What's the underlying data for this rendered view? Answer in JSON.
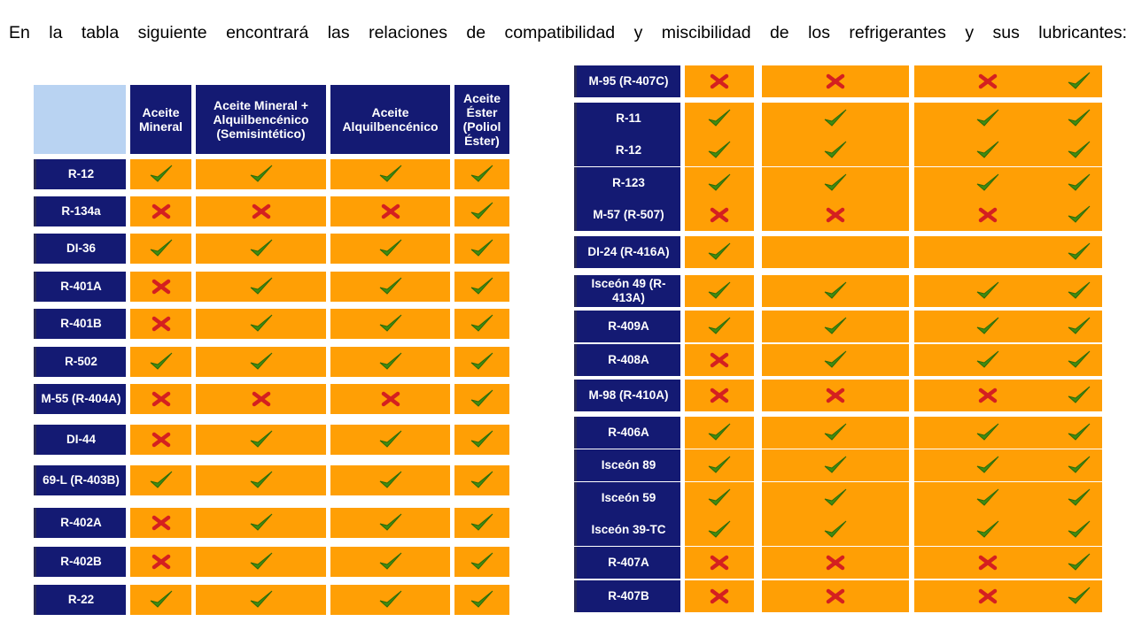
{
  "intro_text": "En la tabla siguiente encontrará las relaciones de compatibilidad y miscibilidad de los refrigerantes y sus lubricantes:",
  "columns": [
    "Aceite Mineral",
    "Aceite Mineral + Alquilbencénico (Semisintético)",
    "Aceite Alquilbencénico",
    "Aceite Éster (Poliol Éster)"
  ],
  "left_table": {
    "rows": [
      {
        "refrigerant": "R-12",
        "values": [
          "yes",
          "yes",
          "yes",
          "yes"
        ]
      },
      {
        "refrigerant": "R-134a",
        "values": [
          "no",
          "no",
          "no",
          "yes"
        ]
      },
      {
        "refrigerant": "DI-36",
        "values": [
          "yes",
          "yes",
          "yes",
          "yes"
        ]
      },
      {
        "refrigerant": "R-401A",
        "values": [
          "no",
          "yes",
          "yes",
          "yes"
        ]
      },
      {
        "refrigerant": "R-401B",
        "values": [
          "no",
          "yes",
          "yes",
          "yes"
        ]
      },
      {
        "refrigerant": "R-502",
        "values": [
          "yes",
          "yes",
          "yes",
          "yes"
        ]
      },
      {
        "refrigerant": "M-55 (R-404A)",
        "values": [
          "no",
          "no",
          "no",
          "yes"
        ]
      },
      {
        "refrigerant": "DI-44",
        "values": [
          "no",
          "yes",
          "yes",
          "yes"
        ]
      },
      {
        "refrigerant": "69-L (R-403B)",
        "values": [
          "yes",
          "yes",
          "yes",
          "yes"
        ]
      },
      {
        "refrigerant": "R-402A",
        "values": [
          "no",
          "yes",
          "yes",
          "yes"
        ]
      },
      {
        "refrigerant": "R-402B",
        "values": [
          "no",
          "yes",
          "yes",
          "yes"
        ]
      },
      {
        "refrigerant": "R-22",
        "values": [
          "yes",
          "yes",
          "yes",
          "yes"
        ]
      }
    ]
  },
  "right_table": {
    "rows": [
      {
        "refrigerant": "M-95 (R-407C)",
        "values": [
          "no",
          "no",
          "no",
          "yes"
        ]
      },
      {
        "refrigerant": "R-11",
        "values": [
          "yes",
          "yes",
          "yes",
          "yes"
        ]
      },
      {
        "refrigerant": "R-12",
        "values": [
          "yes",
          "yes",
          "yes",
          "yes"
        ]
      },
      {
        "refrigerant": "R-123",
        "values": [
          "yes",
          "yes",
          "yes",
          "yes"
        ]
      },
      {
        "refrigerant": "M-57 (R-507)",
        "values": [
          "no",
          "no",
          "no",
          "yes"
        ]
      },
      {
        "refrigerant": "DI-24 (R-416A)",
        "values": [
          "yes",
          "",
          "",
          "yes"
        ]
      },
      {
        "refrigerant": "Isceón 49 (R-413A)",
        "values": [
          "yes",
          "yes",
          "yes",
          "yes"
        ]
      },
      {
        "refrigerant": "R-409A",
        "values": [
          "yes",
          "yes",
          "yes",
          "yes"
        ]
      },
      {
        "refrigerant": "R-408A",
        "values": [
          "no",
          "yes",
          "yes",
          "yes"
        ]
      },
      {
        "refrigerant": "M-98 (R-410A)",
        "values": [
          "no",
          "no",
          "no",
          "yes"
        ]
      },
      {
        "refrigerant": "R-406A",
        "values": [
          "yes",
          "yes",
          "yes",
          "yes"
        ]
      },
      {
        "refrigerant": "Isceón 89",
        "values": [
          "yes",
          "yes",
          "yes",
          "yes"
        ]
      },
      {
        "refrigerant": "Isceón 59",
        "values": [
          "yes",
          "yes",
          "yes",
          "yes"
        ]
      },
      {
        "refrigerant": "Isceón 39-TC",
        "values": [
          "yes",
          "yes",
          "yes",
          "yes"
        ]
      },
      {
        "refrigerant": "R-407A",
        "values": [
          "no",
          "no",
          "no",
          "yes"
        ]
      },
      {
        "refrigerant": "R-407B",
        "values": [
          "no",
          "no",
          "no",
          "yes"
        ]
      }
    ]
  },
  "colors": {
    "label_bg": "#141a73",
    "cell_bg": "#ff9f05",
    "header_blank": "#b9d3f2",
    "check": "#3f8c12",
    "cross": "#d42020"
  },
  "icons": {
    "yes": "check-icon",
    "no": "cross-icon"
  }
}
